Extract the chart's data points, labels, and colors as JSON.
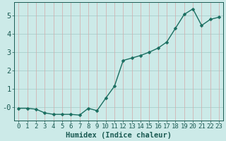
{
  "x": [
    0,
    1,
    2,
    3,
    4,
    5,
    6,
    7,
    8,
    9,
    10,
    11,
    12,
    13,
    14,
    15,
    16,
    17,
    18,
    19,
    20,
    21,
    22,
    23
  ],
  "y": [
    -0.05,
    -0.05,
    -0.1,
    -0.3,
    -0.38,
    -0.38,
    -0.38,
    -0.42,
    -0.05,
    -0.18,
    0.5,
    1.15,
    2.55,
    2.68,
    2.82,
    3.0,
    3.22,
    3.55,
    4.3,
    5.05,
    5.35,
    4.45,
    4.78,
    4.9
  ],
  "line_color": "#1a6e60",
  "marker": "D",
  "marker_size": 2.5,
  "background_color": "#cceae8",
  "xlabel": "Humidex (Indice chaleur)",
  "ylim": [
    -0.7,
    5.7
  ],
  "xlim": [
    -0.5,
    23.5
  ],
  "yticks": [
    0,
    1,
    2,
    3,
    4,
    5
  ],
  "ytick_labels": [
    "-0",
    "1",
    "2",
    "3",
    "4",
    "5"
  ],
  "xticks": [
    0,
    1,
    2,
    3,
    4,
    5,
    6,
    7,
    8,
    9,
    10,
    11,
    12,
    13,
    14,
    15,
    16,
    17,
    18,
    19,
    20,
    21,
    22,
    23
  ],
  "font_color": "#1a5a52",
  "font_size": 6.5,
  "xlabel_fontsize": 7.5,
  "line_width": 1.0,
  "grid_teal": "#aacfcc",
  "grid_pink": "#d4a8a8"
}
